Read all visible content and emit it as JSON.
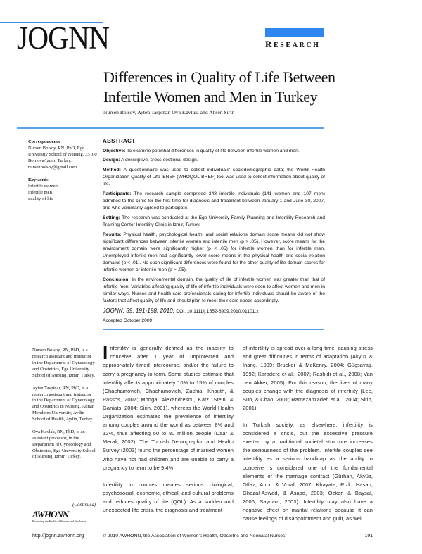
{
  "header": {
    "journal_logo": "JOGNN",
    "section_label_cap": "R",
    "section_label_rest": "ESEARCH",
    "accent_color": "#2f86f0"
  },
  "article": {
    "title": "Differences in Quality of Life Between Infertile Women and Men in Turkey",
    "authors": "Nursen Bolsoy, Ayten Taspinar, Oya Kavlak, and Ahsen Sirin"
  },
  "sidebar": {
    "correspondence_heading": "Correspondence",
    "correspondence_text": "Nursen Bolsoy, RN, PhD, Ege University School of Nursing, 35100 Bornova/Izmir, Turkey.",
    "email": "nursenbolsoy@gmail.com",
    "keywords_heading": "Keywords",
    "keywords": [
      "infertile women",
      "infertile men",
      "quality of life"
    ]
  },
  "abstract": {
    "heading": "ABSTRACT",
    "sections": [
      {
        "label": "Objective:",
        "text": "To examine potential differences in quality of life between infertile women and men."
      },
      {
        "label": "Design:",
        "text": "A descriptive, cross-sectional design."
      },
      {
        "label": "Method:",
        "text": "A questionnaire was used to collect individuals' sociodemographic data; the World Health Organization Quality of Life–BREF (WHOQOL-BREF) tool was used to collect information about quality of life."
      },
      {
        "label": "Participants:",
        "text": "The research sample comprised 248 infertile individuals (141 women and 107 men) admitted to the clinic for the first time for diagnosis and treatment between January 1 and June 30, 2007, and who voluntarily agreed to participate."
      },
      {
        "label": "Setting:",
        "text": "The research was conducted at the Ege University Family Planning and Infertility Research and Training Center Infertility Clinic in Izmir, Turkey."
      },
      {
        "label": "Results:",
        "text": "Physical health, psychological health, and social relations domain score means did not show significant differences between infertile women and infertile men (p > .05). However, score means for the environment domain were significantly higher (p < .05) for infertile women than for infertile men. Unemployed infertile men had significantly lower score means in the physical health and social relation domains (p < .01). No such significant differences were found for the other quality of life domain scores for infertile women or infertile men (p > .05)."
      },
      {
        "label": "Conclusion:",
        "text": "In the environmental domain, the quality of life of infertile women was greater than that of infertile men. Variables affecting quality of life of infertile individuals were seen to affect women and men in similar ways. Nurses and health care professionals caring for infertile individuals should be aware of the factors that affect quality of life and should plan to meet their care needs accordingly."
      }
    ],
    "citation": "JOGNN, 39, 191-198; 2010.",
    "doi": "DOI: 10.1111/j.1552-6909.2010.01101.x",
    "accepted": "Accepted October 2009"
  },
  "bios": [
    "Nursen Bolsoy, RN, PhD, is a research assistant and instructor in the Department of Gynecology and Obstetrics, Ege University School of Nursing, Izmir, Turkey.",
    "Ayten Taspinar, RN, PhD, is a research assistant and instructor in the Department of Gynecology and Obstetrics in Nursing, Adnan Menderes University, Aydin School of Health, Aydin, Turkey.",
    "Oya Kavlak, RN, PhD, is an assistant professor, in the Department of Gynecology and Obstetrics, Ege University School of Nursing, Izmir, Turkey."
  ],
  "continued": "(Continued)",
  "publisher_logo": {
    "word": "AWHONN",
    "tagline": "Promoting the Health of Women and Newborns"
  },
  "body": {
    "dropcap": "I",
    "col1_p1": "nfertility is generally defined as the inability to conceive after 1 year of unprotected and appropriately timed intercourse, and/or the failure to carry a pregnancy to term. Some studies estimate that infertility affects approximately 10% to 15% of couples (Chachamovich, Chachamovich, Zachia, Knauth, & Passos, 2007; Monga, Alexandrescu, Katz, Stein, & Ganiats, 2004; Sirin, 2001), whereas the World Health Organization estimates the prevalence of infertility among couples around the world as between 8% and 12%, thus affecting 50 to 80 million people (Daar & Merali, 2002). The Turkish Demographic and Health Survey (2003) found the percentage of married women who have not had children and are unable to carry a pregnancy to term to be 9.4%.",
    "col1_p2": "Infertility in couples creates serious biological, psychosocial, economic, ethical, and cultural problems and reduces quality of life (QOL). As a sudden and unexpected life crisis, the diagnosis and treatment",
    "col2_p1": "of infertility is spread over a long time, causing stress and great difficulties in terms of adaptation (Akyüz & İnanç, 1999; Brucker & McKenry, 2004; Güçsavaş, 1992; Karadere et al., 2007; Rashidi et al., 2008; Van den Akker, 2005). For this reason, the lives of many couples change with the diagnosis of infertility (Lee, Sun, & Chao, 2001; Ramezanzadeh et al., 2004; Sirin, 2001).",
    "col2_p2": "In Turkish society, as elsewhere, infertility is considered a crisis, but the excessive pressure exerted by a traditional societal structure increases the seriousness of the problem. Infertile couples see infertility as a serious handicap as the ability to conceive is considered one of the fundamental elements of the marriage contract (Gürhan, Akyüz, Oflaz, Atıcı, & Vural, 2007; Khayata, Rizk, Hasan, Ghazal-Aswad, & Asaad, 2003; Ozkan & Baysal, 2006; Saydam, 2003). Infertility may also have a negative effect on marital relations because it can cause feelings of disappointment and guilt, as well"
  },
  "footer": {
    "url": "http://jognn.awhonn.org",
    "copyright": "© 2010 AWHONN, the Association of Women's Health, Obstetric and Neonatal Nurses",
    "page_number": "191"
  }
}
